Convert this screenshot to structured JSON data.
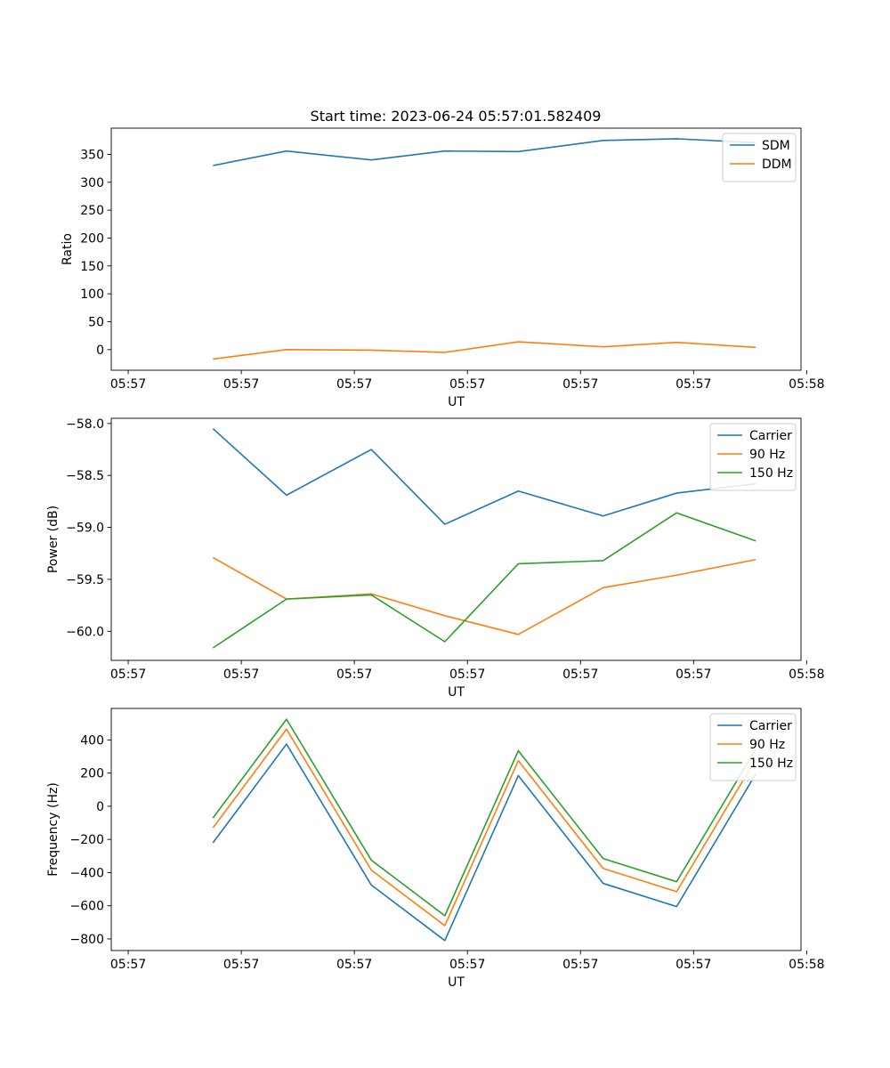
{
  "figure_title": "Start time: 2023-06-24 05:57:01.582409",
  "chart_data": [
    {
      "type": "line",
      "title": "Start time: 2023-06-24 05:57:01.582409",
      "xlabel": "UT",
      "ylabel": "Ratio",
      "x": [
        0.9,
        1.55,
        2.3,
        2.95,
        3.6,
        4.35,
        5.0,
        5.7
      ],
      "xlim": [
        0,
        6.1
      ],
      "xtick_positions": [
        0.15,
        1.15,
        2.15,
        3.15,
        4.15,
        5.15,
        6.15
      ],
      "xtick_labels": [
        "05:57",
        "05:57",
        "05:57",
        "05:57",
        "05:57",
        "05:57",
        "05:58"
      ],
      "ylim": [
        -37,
        397
      ],
      "yticks": [
        0,
        50,
        100,
        150,
        200,
        250,
        300,
        350
      ],
      "series": [
        {
          "name": "SDM",
          "color": "#1f77b4",
          "values": [
            330,
            356,
            340,
            356,
            355,
            375,
            378,
            371
          ]
        },
        {
          "name": "DDM",
          "color": "#ff7f0e",
          "values": [
            -17,
            0,
            -1,
            -5,
            14,
            5,
            13,
            4
          ]
        }
      ],
      "legend": "top-right",
      "grid": false
    },
    {
      "type": "line",
      "title": "",
      "xlabel": "UT",
      "ylabel": "Power (dB)",
      "x": [
        0.9,
        1.55,
        2.3,
        2.95,
        3.6,
        4.35,
        5.0,
        5.7
      ],
      "xlim": [
        0,
        6.1
      ],
      "xtick_positions": [
        0.15,
        1.15,
        2.15,
        3.15,
        4.15,
        5.15,
        6.15
      ],
      "xtick_labels": [
        "05:57",
        "05:57",
        "05:57",
        "05:57",
        "05:57",
        "05:57",
        "05:58"
      ],
      "ylim": [
        -60.28,
        -57.95
      ],
      "yticks": [
        -60.0,
        -59.5,
        -59.0,
        -58.5,
        -58.0
      ],
      "ytick_labels": [
        "−60.0",
        "−59.5",
        "−59.0",
        "−58.5",
        "−58.0"
      ],
      "series": [
        {
          "name": "Carrier",
          "color": "#1f77b4",
          "values": [
            -58.05,
            -58.69,
            -58.25,
            -58.97,
            -58.65,
            -58.89,
            -58.67,
            -58.58
          ]
        },
        {
          "name": "90 Hz",
          "color": "#ff7f0e",
          "values": [
            -59.29,
            -59.69,
            -59.64,
            -59.85,
            -60.03,
            -59.58,
            -59.46,
            -59.31
          ]
        },
        {
          "name": "150 Hz",
          "color": "#2ca02c",
          "values": [
            -60.16,
            -59.69,
            -59.65,
            -60.1,
            -59.35,
            -59.32,
            -58.86,
            -59.13
          ]
        }
      ],
      "legend": "top-right",
      "grid": false
    },
    {
      "type": "line",
      "title": "",
      "xlabel": "UT",
      "ylabel": "Frequency (Hz)",
      "x": [
        0.9,
        1.55,
        2.3,
        2.95,
        3.6,
        4.35,
        5.0,
        5.7
      ],
      "xlim": [
        0,
        6.1
      ],
      "xtick_positions": [
        0.15,
        1.15,
        2.15,
        3.15,
        4.15,
        5.15,
        6.15
      ],
      "xtick_labels": [
        "05:57",
        "05:57",
        "05:57",
        "05:57",
        "05:57",
        "05:57",
        "05:58"
      ],
      "ylim": [
        -870,
        590
      ],
      "yticks": [
        -800,
        -600,
        -400,
        -200,
        0,
        200,
        400
      ],
      "ytick_labels": [
        "−800",
        "−600",
        "−400",
        "−200",
        "0",
        "200",
        "400"
      ],
      "series": [
        {
          "name": "Carrier",
          "color": "#1f77b4",
          "values": [
            -220,
            375,
            -475,
            -810,
            185,
            -465,
            -605,
            195
          ]
        },
        {
          "name": "90 Hz",
          "color": "#ff7f0e",
          "values": [
            -130,
            465,
            -385,
            -720,
            275,
            -375,
            -515,
            285
          ]
        },
        {
          "name": "150 Hz",
          "color": "#2ca02c",
          "values": [
            -70,
            525,
            -325,
            -660,
            335,
            -315,
            -455,
            345
          ]
        }
      ],
      "legend": "top-right",
      "grid": false
    }
  ]
}
